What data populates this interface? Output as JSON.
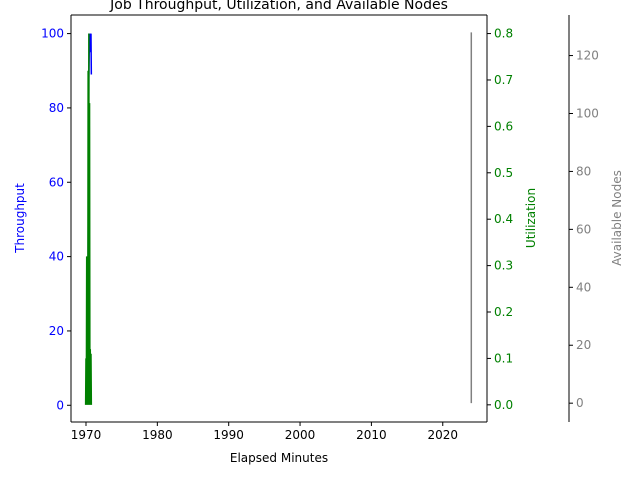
{
  "chart_data": {
    "type": "line",
    "title": "Job Throughput, Utilization, and Available Nodes",
    "xlabel": "Elapsed Minutes",
    "x_ticks": [
      "1970",
      "1980",
      "1990",
      "2000",
      "2010",
      "2020"
    ],
    "x_tick_values": [
      1970,
      1980,
      1990,
      2000,
      2010,
      2020
    ],
    "xlim": [
      1967.9,
      2026.2
    ],
    "axes": [
      {
        "id": "left",
        "label": "Throughput",
        "color": "#0000ff",
        "ylim": [
          -4.5,
          105
        ],
        "ticks": [
          "0",
          "20",
          "40",
          "60",
          "80",
          "100"
        ],
        "tick_values": [
          0,
          20,
          40,
          60,
          80,
          100
        ]
      },
      {
        "id": "right",
        "label": "Utilization",
        "color": "#008000",
        "ylim": [
          -0.037,
          0.84
        ],
        "ticks": [
          "0.0",
          "0.1",
          "0.2",
          "0.3",
          "0.4",
          "0.5",
          "0.6",
          "0.7",
          "0.8"
        ],
        "tick_values": [
          0,
          0.1,
          0.2,
          0.3,
          0.4,
          0.5,
          0.6,
          0.7,
          0.8
        ]
      },
      {
        "id": "offset",
        "label": "Available Nodes",
        "color": "#808080",
        "ylim": [
          -6.5,
          134
        ],
        "ticks": [
          "0",
          "20",
          "40",
          "60",
          "80",
          "100",
          "120"
        ],
        "tick_values": [
          0,
          20,
          40,
          60,
          80,
          100,
          120
        ]
      }
    ],
    "series": [
      {
        "axis": "left",
        "color": "#0000ff",
        "x": [
          1970.0,
          1970.2,
          1970.3,
          1970.4,
          1970.5,
          1970.6,
          1970.7,
          1970.75
        ],
        "y": [
          1,
          13,
          40,
          88,
          100,
          95,
          100,
          89
        ]
      },
      {
        "axis": "right",
        "color": "#008000",
        "x": [
          1969.95,
          1970.0,
          1970.05,
          1970.1,
          1970.15,
          1970.2,
          1970.25,
          1970.3,
          1970.35,
          1970.4,
          1970.45,
          1970.5,
          1970.55,
          1970.6,
          1970.65,
          1970.7,
          1970.75
        ],
        "y": [
          0.0,
          0.1,
          0.01,
          0.32,
          0.0,
          0.25,
          0.02,
          0.72,
          0.0,
          0.8,
          0.05,
          0.65,
          0.0,
          0.12,
          0.01,
          0.11,
          0.0
        ]
      },
      {
        "axis": "offset",
        "color": "#808080",
        "x": [
          2024.0,
          2024.0
        ],
        "y": [
          0,
          128
        ]
      }
    ]
  }
}
